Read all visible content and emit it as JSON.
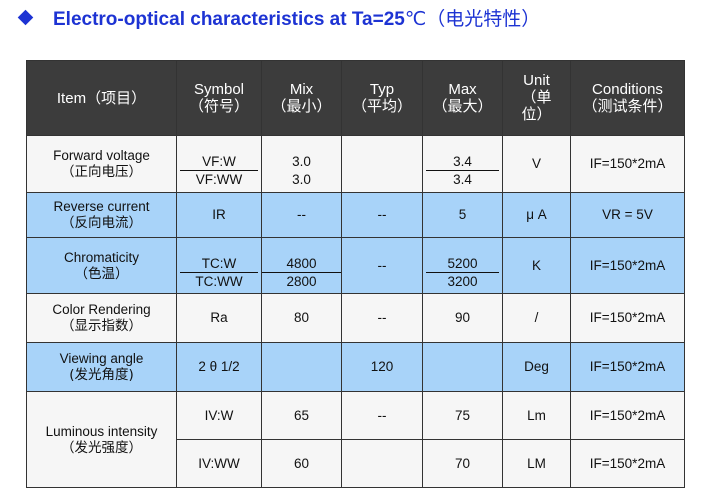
{
  "title": {
    "icon": "diamond-bullet-icon",
    "text": "Electro-optical characteristics at Ta=25",
    "unit": "℃",
    "text_cn": "（电光特性）",
    "color": "#1d33d3"
  },
  "headers": {
    "item": "Item",
    "item_cn": "（项目）",
    "symbol": "Symbol",
    "symbol_cn": "（符号）",
    "mix": "Mix",
    "mix_cn": "（最小）",
    "typ": "Typ",
    "typ_cn": "（平均）",
    "max": "Max",
    "max_cn": "（最大）",
    "unit_l1": "Unit",
    "unit_l2": "（单",
    "unit_l3": "位）",
    "conditions": "Conditions",
    "conditions_cn": "（测试条件）"
  },
  "rows": {
    "forward_voltage": {
      "item": "Forward voltage",
      "item_cn": "（正向电压）",
      "symbol_w": "VF:W",
      "symbol_ww": "VF:WW",
      "min_w": "3.0",
      "min_ww": "3.0",
      "typ": "",
      "max_w": "3.4",
      "max_ww": "3.4",
      "unit": "V",
      "conditions": "IF=150*2mA"
    },
    "reverse_current": {
      "item": "Reverse current",
      "item_cn": "（反向电流）",
      "symbol": "IR",
      "min": "--",
      "typ": "--",
      "max": "5",
      "unit": "μ A",
      "conditions": "VR = 5V"
    },
    "chromaticity": {
      "item": "Chromaticity",
      "item_cn": "（色温）",
      "symbol_w": "TC:W",
      "symbol_ww": "TC:WW",
      "min_w": "4800",
      "min_ww": "2800",
      "typ": "--",
      "max_w": "5200",
      "max_ww": "3200",
      "unit": "K",
      "conditions": "IF=150*2mA"
    },
    "color_rendering": {
      "item": "Color Rendering",
      "item_cn": "（显示指数）",
      "symbol": "Ra",
      "min": "80",
      "typ": "--",
      "max": "90",
      "unit": "/",
      "conditions": "IF=150*2mA"
    },
    "viewing_angle": {
      "item": "Viewing angle",
      "item_cn": "(发光角度)",
      "symbol": "2 θ 1/2",
      "min": "",
      "typ": "120",
      "max": "",
      "unit": "Deg",
      "conditions": "IF=150*2mA"
    },
    "luminous_intensity": {
      "item": "Luminous intensity",
      "item_cn": "（发光强度）",
      "symbol_w": "IV:W",
      "min_w": "65",
      "typ_w": "--",
      "max_w": "75",
      "unit_w": "Lm",
      "conditions_w": "IF=150*2mA",
      "symbol_ww": "IV:WW",
      "min_ww": "60",
      "typ_ww": "",
      "max_ww": "70",
      "unit_ww": "LM",
      "conditions_ww": "IF=150*2mA"
    }
  },
  "colors": {
    "header_bg": "#3c3c3c",
    "row_white": "#f6f6f6",
    "row_blue": "#a8d3f9"
  }
}
